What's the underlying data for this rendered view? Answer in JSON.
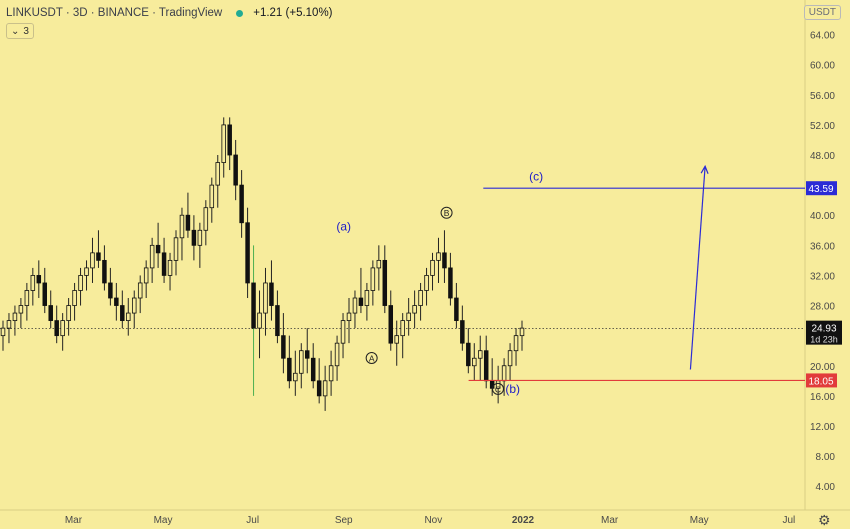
{
  "header": {
    "symbol": "LINKUSDT · 3D · BINANCE · TradingView",
    "change": "+1.21 (+5.10%)",
    "interval_collapse": "3",
    "currency": "USDT"
  },
  "colors": {
    "background": "#f7ec9c",
    "candle_body": "#111111",
    "candle_wick": "#222222",
    "highlight_wick": "#4caf50",
    "down_wick": "#b33a3a",
    "target_line": "#2b2bd6",
    "support_line": "#e23b3b",
    "label_blue": "#1c1cc9"
  },
  "icons": {
    "settings": "gear-icon",
    "interval_toggle": "chevron-down-icon"
  },
  "chart_data": {
    "type": "candlestick",
    "title": "LINKUSDT · 3D · BINANCE",
    "y_axis": {
      "ticks": [
        "64.00",
        "60.00",
        "56.00",
        "52.00",
        "48.00",
        "44.00",
        "40.00",
        "36.00",
        "32.00",
        "28.00",
        "24.00",
        "20.00",
        "16.00",
        "12.00",
        "8.00",
        "4.00"
      ],
      "range": [
        1.5,
        67
      ]
    },
    "x_axis": {
      "ticks": [
        "Mar",
        "May",
        "Jul",
        "Sep",
        "Nov",
        "2022",
        "Mar",
        "May",
        "Jul"
      ]
    },
    "grid": false,
    "levels": {
      "target": {
        "value": 43.59,
        "label": "43.59"
      },
      "current": {
        "value": 24.93,
        "label": "24.93",
        "countdown": "1d 23h"
      },
      "support": {
        "value": 18.05,
        "label": "18.05"
      }
    },
    "wave_labels": [
      {
        "text": "(a)",
        "price": 38.0,
        "date": "2021-09-01"
      },
      {
        "text": "A",
        "price": 20.5,
        "date": "2021-09-20",
        "circled": true
      },
      {
        "text": "B",
        "price": 39.8,
        "date": "2021-11-10",
        "circled": true
      },
      {
        "text": "C",
        "price": 16.4,
        "date": "2021-12-15",
        "circled": true
      },
      {
        "text": "(b)",
        "price": 16.4,
        "date": "2021-12-25"
      },
      {
        "text": "(c)",
        "price": 44.6,
        "date": "2022-01-10"
      }
    ],
    "projection": {
      "from": {
        "date": "2022-04-25",
        "price": 19.5
      },
      "to": {
        "date": "2022-05-05",
        "price": 46.5
      }
    },
    "candles": [
      [
        24,
        26,
        22,
        25
      ],
      [
        25,
        27,
        23,
        26
      ],
      [
        26,
        28,
        24,
        27
      ],
      [
        27,
        29,
        25,
        28
      ],
      [
        28,
        31,
        26,
        30
      ],
      [
        30,
        33,
        28,
        32
      ],
      [
        32,
        34,
        29,
        31
      ],
      [
        31,
        33,
        27,
        28
      ],
      [
        28,
        30,
        25,
        26
      ],
      [
        26,
        28,
        23,
        24
      ],
      [
        24,
        27,
        22,
        26
      ],
      [
        26,
        29,
        24,
        28
      ],
      [
        28,
        31,
        26,
        30
      ],
      [
        30,
        33,
        28,
        32
      ],
      [
        32,
        34,
        30,
        33
      ],
      [
        33,
        37,
        31,
        35
      ],
      [
        35,
        38,
        33,
        34
      ],
      [
        34,
        36,
        30,
        31
      ],
      [
        31,
        33,
        28,
        29
      ],
      [
        29,
        31,
        26,
        28
      ],
      [
        28,
        30,
        25,
        26
      ],
      [
        26,
        29,
        24,
        27
      ],
      [
        27,
        30,
        25,
        29
      ],
      [
        29,
        32,
        27,
        31
      ],
      [
        31,
        34,
        29,
        33
      ],
      [
        33,
        37,
        31,
        36
      ],
      [
        36,
        39,
        33,
        35
      ],
      [
        35,
        37,
        31,
        32
      ],
      [
        32,
        35,
        30,
        34
      ],
      [
        34,
        38,
        32,
        37
      ],
      [
        37,
        41,
        34,
        40
      ],
      [
        40,
        43,
        37,
        38
      ],
      [
        38,
        40,
        34,
        36
      ],
      [
        36,
        39,
        33,
        38
      ],
      [
        38,
        42,
        36,
        41
      ],
      [
        41,
        45,
        39,
        44
      ],
      [
        44,
        48,
        41,
        47
      ],
      [
        47,
        53,
        45,
        52
      ],
      [
        52,
        53,
        46,
        48
      ],
      [
        48,
        50,
        42,
        44
      ],
      [
        44,
        46,
        37,
        39
      ],
      [
        39,
        41,
        29,
        31
      ],
      [
        31,
        36,
        16,
        25
      ],
      [
        25,
        30,
        21,
        27
      ],
      [
        27,
        33,
        24,
        31
      ],
      [
        31,
        34,
        26,
        28
      ],
      [
        28,
        30,
        23,
        24
      ],
      [
        24,
        27,
        19,
        21
      ],
      [
        21,
        24,
        17,
        18
      ],
      [
        18,
        22,
        16,
        19
      ],
      [
        19,
        23,
        17,
        22
      ],
      [
        22,
        25,
        19,
        21
      ],
      [
        21,
        23,
        17,
        18
      ],
      [
        18,
        21,
        15,
        16
      ],
      [
        16,
        20,
        14,
        18
      ],
      [
        18,
        22,
        16,
        20
      ],
      [
        20,
        24,
        18,
        23
      ],
      [
        23,
        27,
        21,
        26
      ],
      [
        26,
        29,
        23,
        27
      ],
      [
        27,
        30,
        25,
        29
      ],
      [
        29,
        33,
        27,
        28
      ],
      [
        28,
        31,
        26,
        30
      ],
      [
        30,
        34,
        28,
        33
      ],
      [
        33,
        36,
        30,
        34
      ],
      [
        34,
        36,
        27,
        28
      ],
      [
        28,
        30,
        22,
        23
      ],
      [
        23,
        26,
        20,
        24
      ],
      [
        24,
        27,
        21,
        26
      ],
      [
        26,
        29,
        24,
        27
      ],
      [
        27,
        30,
        25,
        28
      ],
      [
        28,
        31,
        26,
        30
      ],
      [
        30,
        33,
        28,
        32
      ],
      [
        32,
        35,
        30,
        34
      ],
      [
        34,
        37,
        31,
        35
      ],
      [
        35,
        38,
        31,
        33
      ],
      [
        33,
        35,
        28,
        29
      ],
      [
        29,
        31,
        25,
        26
      ],
      [
        26,
        28,
        22,
        23
      ],
      [
        23,
        25,
        19,
        20
      ],
      [
        20,
        23,
        18,
        21
      ],
      [
        21,
        24,
        18,
        22
      ],
      [
        22,
        24,
        17,
        18
      ],
      [
        18,
        21,
        16,
        17
      ],
      [
        17,
        20,
        15,
        18
      ],
      [
        18,
        21,
        16,
        20
      ],
      [
        20,
        23,
        18,
        22
      ],
      [
        22,
        25,
        20,
        24
      ],
      [
        24,
        26,
        22,
        25
      ]
    ]
  }
}
